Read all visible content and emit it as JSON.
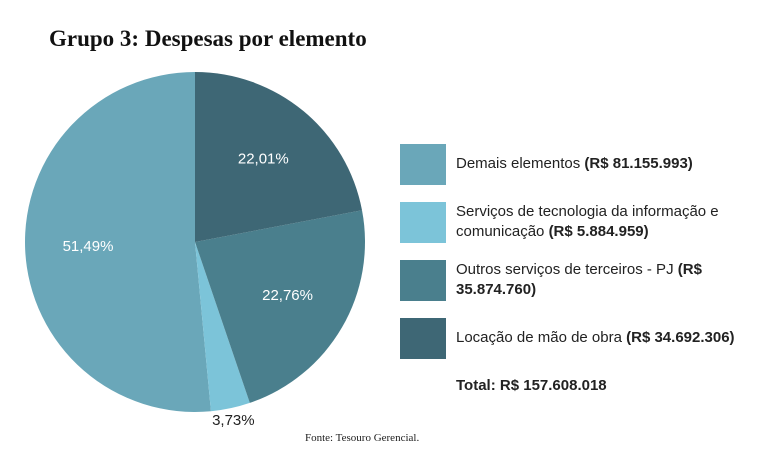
{
  "chart_data": {
    "type": "pie",
    "title": "Grupo 3: Despesas por elemento",
    "categories": [
      "Demais elementos",
      "Serviços de tecnologia da informação e comunicação",
      "Outros serviços de terceiros - PJ",
      "Locação de mão de obra"
    ],
    "amount_labels": [
      "(R$ 81.155.993)",
      "(R$ 5.884.959)",
      "(R$ 35.874.760)",
      "(R$ 34.692.306)"
    ],
    "values": [
      51.49,
      3.73,
      22.76,
      22.01
    ],
    "value_labels": [
      "51,49%",
      "3,73%",
      "22,76%",
      "22,01%"
    ],
    "colors": [
      "#6aa7b9",
      "#7cc4d9",
      "#4a7f8d",
      "#3e6775"
    ],
    "total_label": "Total: R$ 157.608.018",
    "source": "Fonte:  Tesouro Gerencial."
  }
}
